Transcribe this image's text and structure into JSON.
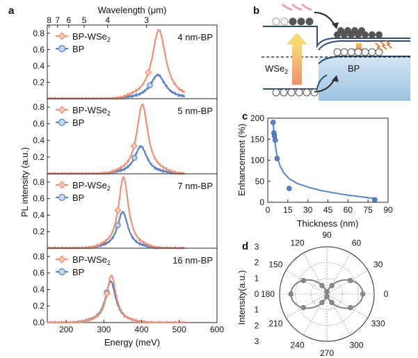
{
  "colors": {
    "bp_wse2": "#e8927a",
    "bp": "#5b7fbf",
    "fit": "#5b83bf",
    "polar_curve": "#777777",
    "polar_marker": "#8a8a8a"
  },
  "panel_labels": {
    "a": "a",
    "b": "b",
    "c": "c",
    "d": "d"
  },
  "chart_data": [
    {
      "id": "panel-a",
      "type": "line",
      "xlabel": "Energy (meV)",
      "ylabel": "PL intensity (a.u.)",
      "top_axis_label": "Wavelength (μm)",
      "top_axis_ticks": [
        "8",
        "7",
        "6",
        "5",
        "4",
        "3"
      ],
      "top_axis_tick_wavelengths_um": [
        8,
        7,
        6,
        5,
        4,
        3
      ],
      "xlim": [
        150,
        600
      ],
      "xticks": [
        200,
        300,
        400,
        500,
        600
      ],
      "legend": [
        "BP-WSe2",
        "BP"
      ],
      "legend_placement": "top-left",
      "subplots": [
        {
          "label": "4 nm-BP",
          "ylim": [
            0,
            0.9
          ],
          "yticks": [
            "0.2",
            "0.4",
            "0.6",
            "0.8"
          ],
          "series": [
            {
              "name": "BP-WSe2",
              "peak_energy_meV": 446,
              "peak_intensity": 0.84,
              "fwhm_meV": 44,
              "marker_energy_meV": 418
            },
            {
              "name": "BP",
              "peak_energy_meV": 443,
              "peak_intensity": 0.29,
              "fwhm_meV": 48,
              "marker_energy_meV": 422
            }
          ]
        },
        {
          "label": "5 nm-BP",
          "ylim": [
            0,
            0.9
          ],
          "yticks": [
            "0.2",
            "0.4",
            "0.6",
            "0.8"
          ],
          "series": [
            {
              "name": "BP-WSe2",
              "peak_energy_meV": 402,
              "peak_intensity": 0.83,
              "fwhm_meV": 36,
              "marker_energy_meV": 380
            },
            {
              "name": "BP",
              "peak_energy_meV": 398,
              "peak_intensity": 0.33,
              "fwhm_meV": 40,
              "marker_energy_meV": 381
            }
          ]
        },
        {
          "label": "7 nm-BP",
          "ylim": [
            0,
            0.9
          ],
          "yticks": [
            "0.2",
            "0.4",
            "0.6",
            "0.8"
          ],
          "series": [
            {
              "name": "BP-WSe2",
              "peak_energy_meV": 352,
              "peak_intensity": 0.86,
              "fwhm_meV": 32,
              "marker_energy_meV": 337
            },
            {
              "name": "BP",
              "peak_energy_meV": 350,
              "peak_intensity": 0.44,
              "fwhm_meV": 34,
              "marker_energy_meV": 337
            }
          ]
        },
        {
          "label": "16 nm-BP",
          "ylim": [
            0,
            0.9
          ],
          "yticks": [
            "0.0",
            "0.2",
            "0.4",
            "0.6",
            "0.8"
          ],
          "series": [
            {
              "name": "BP-WSe2",
              "peak_energy_meV": 320,
              "peak_intensity": 0.57,
              "fwhm_meV": 30,
              "marker_energy_meV": 308
            },
            {
              "name": "BP",
              "peak_energy_meV": 318,
              "peak_intensity": 0.5,
              "fwhm_meV": 33,
              "marker_energy_meV": 308
            }
          ]
        }
      ]
    },
    {
      "id": "panel-b",
      "type": "diagram",
      "labels": {
        "left": "WSe2",
        "right": "BP"
      }
    },
    {
      "id": "panel-c",
      "type": "scatter",
      "xlabel": "Thickness (nm)",
      "ylabel": "Enhancement (%)",
      "xlim": [
        0,
        90
      ],
      "ylim": [
        0,
        200
      ],
      "xticks": [
        0,
        15,
        30,
        45,
        60,
        75,
        90
      ],
      "yticks": [
        0,
        50,
        100,
        150,
        200
      ],
      "points": [
        {
          "x": 4,
          "y": 190
        },
        {
          "x": 4.6,
          "y": 165
        },
        {
          "x": 5,
          "y": 158
        },
        {
          "x": 5.6,
          "y": 148
        },
        {
          "x": 7,
          "y": 104
        },
        {
          "x": 16,
          "y": 33
        },
        {
          "x": 80,
          "y": 6
        }
      ],
      "fit_points": [
        [
          4,
          190
        ],
        [
          4.5,
          170
        ],
        [
          5,
          152
        ],
        [
          6,
          128
        ],
        [
          7,
          110
        ],
        [
          9,
          88
        ],
        [
          12,
          70
        ],
        [
          16,
          56
        ],
        [
          22,
          45
        ],
        [
          30,
          36
        ],
        [
          40,
          28
        ],
        [
          50,
          22
        ],
        [
          60,
          17
        ],
        [
          70,
          13
        ],
        [
          80,
          9
        ]
      ]
    },
    {
      "id": "panel-d",
      "type": "polar",
      "ylabel": "Intensity(a.u.)",
      "angle_ticks": [
        "0",
        "30",
        "60",
        "90",
        "120",
        "150",
        "180",
        "210",
        "240",
        "270",
        "300",
        "330"
      ],
      "angle_tick_degrees": [
        0,
        30,
        60,
        90,
        120,
        150,
        180,
        210,
        240,
        270,
        300,
        330
      ],
      "r_ticks_top": [
        "3",
        "2",
        "1",
        "0"
      ],
      "r_ticks_bottom": [
        "1",
        "2",
        "3"
      ],
      "r_max": 3,
      "curve": {
        "type": "dipole",
        "r_max": 2.28,
        "r_min": 0.12
      },
      "points": [
        {
          "angle": 0,
          "r": 2.28
        },
        {
          "angle": 30,
          "r": 1.72
        },
        {
          "angle": 60,
          "r": 0.62
        },
        {
          "angle": 90,
          "r": 0.15
        },
        {
          "angle": 120,
          "r": 0.62
        },
        {
          "angle": 150,
          "r": 1.72
        },
        {
          "angle": 180,
          "r": 2.28
        },
        {
          "angle": 210,
          "r": 1.72
        },
        {
          "angle": 240,
          "r": 0.62
        },
        {
          "angle": 270,
          "r": 0.15
        },
        {
          "angle": 300,
          "r": 0.62
        },
        {
          "angle": 330,
          "r": 1.72
        }
      ]
    }
  ]
}
